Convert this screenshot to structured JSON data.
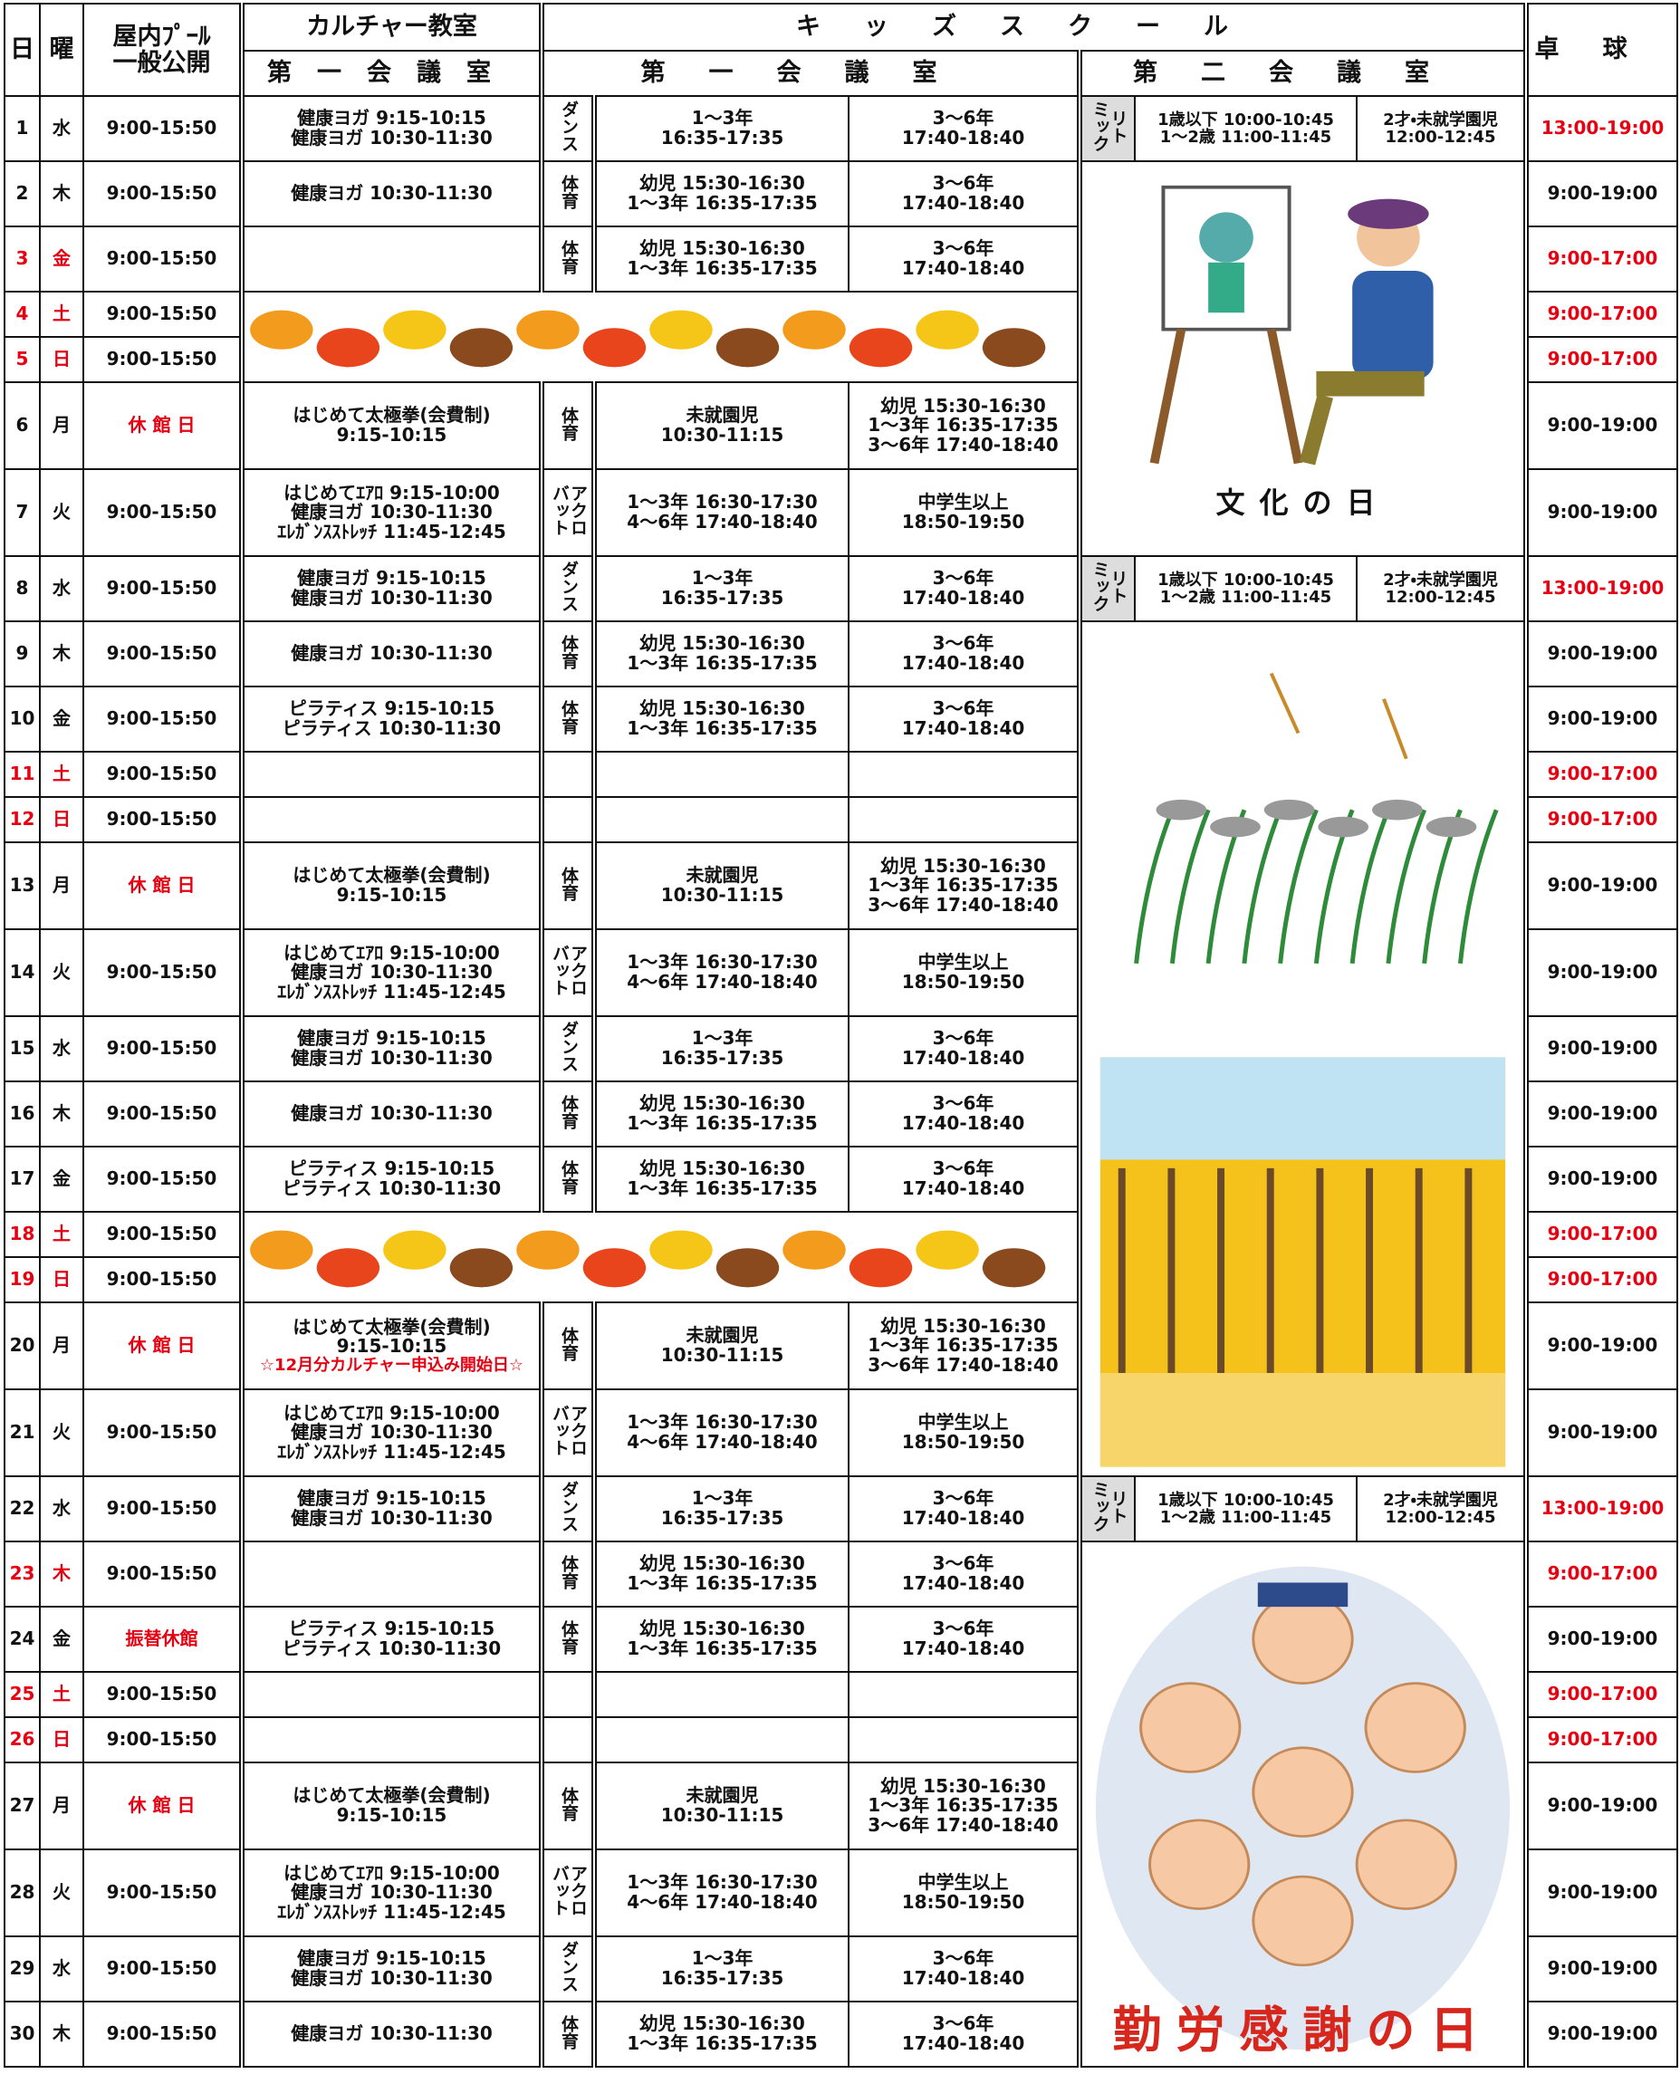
{
  "header": {
    "day": "日",
    "weekday": "曜",
    "pool": [
      "屋内ﾌﾟｰﾙ",
      "一般公開"
    ],
    "culture": "カルチャー教室",
    "culture_room": "第一会議室",
    "kids": "キッズスクール",
    "kids_room1": "第一会議室",
    "kids_room2": "第二会議室",
    "tennis": "卓球"
  },
  "decorations": {
    "culture_day": "文化の日",
    "labor_day": "勤労感謝の日"
  },
  "rows": [
    {
      "day": 1,
      "weekday": "水",
      "pool": "9:00-15:50",
      "culture": [
        "健康ヨガ 9:15-10:15",
        "健康ヨガ 10:30-11:30"
      ],
      "kids_type": [
        "ダンス"
      ],
      "kids_1": [
        "1～3年",
        "16:35-17:35"
      ],
      "kids_2": [
        "3～6年",
        "17:40-18:40"
      ],
      "mix_type": [
        "リト",
        "ミック"
      ],
      "mix_1": [
        "1歳以下 10:00-10:45",
        "1～2歳 11:00-11:45"
      ],
      "mix_2": [
        "2才・未就学園児",
        "12:00-12:45"
      ],
      "tennis": "13:00-19:00",
      "tennis_color": "#e60012"
    },
    {
      "day": 2,
      "weekday": "木",
      "pool": "9:00-15:50",
      "culture": [
        "健康ヨガ 10:30-11:30"
      ],
      "kids_type": [
        "体育"
      ],
      "kids_1": [
        "幼児 15:30-16:30",
        "1～3年 16:35-17:35"
      ],
      "kids_2": [
        "3～6年",
        "17:40-18:40"
      ],
      "tennis": "9:00-19:00"
    },
    {
      "day": 3,
      "weekday": "金",
      "day_color": "#e60012",
      "pool": "9:00-15:50",
      "culture": [],
      "kids_type": [
        "体育"
      ],
      "kids_1": [
        "幼児 15:30-16:30",
        "1～3年 16:35-17:35"
      ],
      "kids_2": [
        "3～6年",
        "17:40-18:40"
      ],
      "tennis": "9:00-17:00",
      "tennis_color": "#e60012"
    },
    {
      "day": 4,
      "weekday": "土",
      "day_color": "#e60012",
      "pool": "9:00-15:50",
      "tennis": "9:00-17:00",
      "tennis_color": "#e60012"
    },
    {
      "day": 5,
      "weekday": "日",
      "day_color": "#e60012",
      "pool": "9:00-15:50",
      "tennis": "9:00-17:00",
      "tennis_color": "#e60012"
    },
    {
      "day": 6,
      "weekday": "月",
      "pool": "休 館 日",
      "pool_color": "#e60012",
      "culture": [
        "はじめて太極拳(会費制)",
        "9:15-10:15"
      ],
      "kids_type": [
        "体育"
      ],
      "kids_1": [
        "未就園児",
        "10:30-11:15"
      ],
      "kids_2": [
        "幼児 15:30-16:30",
        "1～3年 16:35-17:35",
        "3～6年 17:40-18:40"
      ],
      "tennis": "9:00-19:00"
    },
    {
      "day": 7,
      "weekday": "火",
      "pool": "9:00-15:50",
      "culture": [
        "はじめてｴｱﾛ 9:15-10:00",
        "健康ヨガ 10:30-11:30",
        "ｴﾚｶﾞﾝｽｽﾄﾚｯﾁ 11:45-12:45"
      ],
      "kids_type": [
        "アクロ",
        "バット"
      ],
      "kids_1": [
        "1～3年 16:30-17:30",
        "4～6年 17:40-18:40"
      ],
      "kids_2": [
        "中学生以上",
        "18:50-19:50"
      ],
      "tennis": "9:00-19:00"
    },
    {
      "day": 8,
      "weekday": "水",
      "pool": "9:00-15:50",
      "culture": [
        "健康ヨガ 9:15-10:15",
        "健康ヨガ 10:30-11:30"
      ],
      "kids_type": [
        "ダンス"
      ],
      "kids_1": [
        "1～3年",
        "16:35-17:35"
      ],
      "kids_2": [
        "3～6年",
        "17:40-18:40"
      ],
      "mix_type": [
        "リト",
        "ミック"
      ],
      "mix_1": [
        "1歳以下 10:00-10:45",
        "1～2歳 11:00-11:45"
      ],
      "mix_2": [
        "2才・未就学園児",
        "12:00-12:45"
      ],
      "tennis": "13:00-19:00",
      "tennis_color": "#e60012"
    },
    {
      "day": 9,
      "weekday": "木",
      "pool": "9:00-15:50",
      "culture": [
        "健康ヨガ 10:30-11:30"
      ],
      "kids_type": [
        "体育"
      ],
      "kids_1": [
        "幼児 15:30-16:30",
        "1～3年 16:35-17:35"
      ],
      "kids_2": [
        "3～6年",
        "17:40-18:40"
      ],
      "tennis": "9:00-19:00"
    },
    {
      "day": 10,
      "weekday": "金",
      "pool": "9:00-15:50",
      "culture": [
        "ピラティス 9:15-10:15",
        "ピラティス 10:30-11:30"
      ],
      "kids_type": [
        "体育"
      ],
      "kids_1": [
        "幼児 15:30-16:30",
        "1～3年 16:35-17:35"
      ],
      "kids_2": [
        "3～6年",
        "17:40-18:40"
      ],
      "tennis": "9:00-19:00"
    },
    {
      "day": 11,
      "weekday": "土",
      "day_color": "#e60012",
      "pool": "9:00-15:50",
      "culture": [],
      "kids_type": [],
      "kids_1": [],
      "kids_2": [],
      "tennis": "9:00-17:00",
      "tennis_color": "#e60012"
    },
    {
      "day": 12,
      "weekday": "日",
      "day_color": "#e60012",
      "pool": "9:00-15:50",
      "culture": [],
      "kids_type": [],
      "kids_1": [],
      "kids_2": [],
      "tennis": "9:00-17:00",
      "tennis_color": "#e60012"
    },
    {
      "day": 13,
      "weekday": "月",
      "pool": "休 館 日",
      "pool_color": "#e60012",
      "culture": [
        "はじめて太極拳(会費制)",
        "9:15-10:15"
      ],
      "kids_type": [
        "体育"
      ],
      "kids_1": [
        "未就園児",
        "10:30-11:15"
      ],
      "kids_2": [
        "幼児 15:30-16:30",
        "1～3年 16:35-17:35",
        "3～6年 17:40-18:40"
      ],
      "tennis": "9:00-19:00"
    },
    {
      "day": 14,
      "weekday": "火",
      "pool": "9:00-15:50",
      "culture": [
        "はじめてｴｱﾛ 9:15-10:00",
        "健康ヨガ 10:30-11:30",
        "ｴﾚｶﾞﾝｽｽﾄﾚｯﾁ 11:45-12:45"
      ],
      "kids_type": [
        "アクロ",
        "バット"
      ],
      "kids_1": [
        "1～3年 16:30-17:30",
        "4～6年 17:40-18:40"
      ],
      "kids_2": [
        "中学生以上",
        "18:50-19:50"
      ],
      "tennis": "9:00-19:00"
    },
    {
      "day": 15,
      "weekday": "水",
      "pool": "9:00-15:50",
      "culture": [
        "健康ヨガ 9:15-10:15",
        "健康ヨガ 10:30-11:30"
      ],
      "kids_type": [
        "ダンス"
      ],
      "kids_1": [
        "1～3年",
        "16:35-17:35"
      ],
      "kids_2": [
        "3～6年",
        "17:40-18:40"
      ],
      "tennis": "9:00-19:00"
    },
    {
      "day": 16,
      "weekday": "木",
      "pool": "9:00-15:50",
      "culture": [
        "健康ヨガ 10:30-11:30"
      ],
      "kids_type": [
        "体育"
      ],
      "kids_1": [
        "幼児 15:30-16:30",
        "1～3年 16:35-17:35"
      ],
      "kids_2": [
        "3～6年",
        "17:40-18:40"
      ],
      "tennis": "9:00-19:00"
    },
    {
      "day": 17,
      "weekday": "金",
      "pool": "9:00-15:50",
      "culture": [
        "ピラティス 9:15-10:15",
        "ピラティス 10:30-11:30"
      ],
      "kids_type": [
        "体育"
      ],
      "kids_1": [
        "幼児 15:30-16:30",
        "1～3年 16:35-17:35"
      ],
      "kids_2": [
        "3～6年",
        "17:40-18:40"
      ],
      "tennis": "9:00-19:00"
    },
    {
      "day": 18,
      "weekday": "土",
      "day_color": "#e60012",
      "pool": "9:00-15:50",
      "tennis": "9:00-17:00",
      "tennis_color": "#e60012"
    },
    {
      "day": 19,
      "weekday": "日",
      "day_color": "#e60012",
      "pool": "9:00-15:50",
      "tennis": "9:00-17:00",
      "tennis_color": "#e60012"
    },
    {
      "day": 20,
      "weekday": "月",
      "pool": "休 館 日",
      "pool_color": "#e60012",
      "culture": [
        "はじめて太極拳(会費制)",
        "9:15-10:15"
      ],
      "culture_note": "☆12月分カルチャー申込み開始日☆",
      "culture_note_color": "#e60012",
      "kids_type": [
        "体育"
      ],
      "kids_1": [
        "未就園児",
        "10:30-11:15"
      ],
      "kids_2": [
        "幼児 15:30-16:30",
        "1～3年 16:35-17:35",
        "3～6年 17:40-18:40"
      ],
      "tennis": "9:00-19:00"
    },
    {
      "day": 21,
      "weekday": "火",
      "pool": "9:00-15:50",
      "culture": [
        "はじめてｴｱﾛ 9:15-10:00",
        "健康ヨガ 10:30-11:30",
        "ｴﾚｶﾞﾝｽｽﾄﾚｯﾁ 11:45-12:45"
      ],
      "kids_type": [
        "アクロ",
        "バット"
      ],
      "kids_1": [
        "1～3年 16:30-17:30",
        "4～6年 17:40-18:40"
      ],
      "kids_2": [
        "中学生以上",
        "18:50-19:50"
      ],
      "tennis": "9:00-19:00"
    },
    {
      "day": 22,
      "weekday": "水",
      "pool": "9:00-15:50",
      "culture": [
        "健康ヨガ 9:15-10:15",
        "健康ヨガ 10:30-11:30"
      ],
      "kids_type": [
        "ダンス"
      ],
      "kids_1": [
        "1～3年",
        "16:35-17:35"
      ],
      "kids_2": [
        "3～6年",
        "17:40-18:40"
      ],
      "mix_type": [
        "リト",
        "ミック"
      ],
      "mix_1": [
        "1歳以下 10:00-10:45",
        "1～2歳 11:00-11:45"
      ],
      "mix_2": [
        "2才・未就学園児",
        "12:00-12:45"
      ],
      "tennis": "13:00-19:00",
      "tennis_color": "#e60012"
    },
    {
      "day": 23,
      "weekday": "木",
      "day_color": "#e60012",
      "pool": "9:00-15:50",
      "culture": [],
      "kids_type": [
        "体育"
      ],
      "kids_1": [
        "幼児 15:30-16:30",
        "1～3年 16:35-17:35"
      ],
      "kids_2": [
        "3～6年",
        "17:40-18:40"
      ],
      "tennis": "9:00-17:00",
      "tennis_color": "#e60012"
    },
    {
      "day": 24,
      "weekday": "金",
      "pool": "振替休館",
      "pool_color": "#e60012",
      "culture": [
        "ピラティス 9:15-10:15",
        "ピラティス 10:30-11:30"
      ],
      "kids_type": [
        "体育"
      ],
      "kids_1": [
        "幼児 15:30-16:30",
        "1～3年 16:35-17:35"
      ],
      "kids_2": [
        "3～6年",
        "17:40-18:40"
      ],
      "tennis": "9:00-19:00"
    },
    {
      "day": 25,
      "weekday": "土",
      "day_color": "#e60012",
      "pool": "9:00-15:50",
      "culture": [],
      "kids_type": [],
      "kids_1": [],
      "kids_2": [],
      "tennis": "9:00-17:00",
      "tennis_color": "#e60012"
    },
    {
      "day": 26,
      "weekday": "日",
      "day_color": "#e60012",
      "pool": "9:00-15:50",
      "culture": [],
      "kids_type": [],
      "kids_1": [],
      "kids_2": [],
      "tennis": "9:00-17:00",
      "tennis_color": "#e60012"
    },
    {
      "day": 27,
      "weekday": "月",
      "pool": "休 館 日",
      "pool_color": "#e60012",
      "culture": [
        "はじめて太極拳(会費制)",
        "9:15-10:15"
      ],
      "kids_type": [
        "体育"
      ],
      "kids_1": [
        "未就園児",
        "10:30-11:15"
      ],
      "kids_2": [
        "幼児 15:30-16:30",
        "1～3年 16:35-17:35",
        "3～6年 17:40-18:40"
      ],
      "tennis": "9:00-19:00"
    },
    {
      "day": 28,
      "weekday": "火",
      "pool": "9:00-15:50",
      "culture": [
        "はじめてｴｱﾛ 9:15-10:00",
        "健康ヨガ 10:30-11:30",
        "ｴﾚｶﾞﾝｽｽﾄﾚｯﾁ 11:45-12:45"
      ],
      "kids_type": [
        "アクロ",
        "バット"
      ],
      "kids_1": [
        "1～3年 16:30-17:30",
        "4～6年 17:40-18:40"
      ],
      "kids_2": [
        "中学生以上",
        "18:50-19:50"
      ],
      "tennis": "9:00-19:00"
    },
    {
      "day": 29,
      "weekday": "水",
      "pool": "9:00-15:50",
      "culture": [
        "健康ヨガ 9:15-10:15",
        "健康ヨガ 10:30-11:30"
      ],
      "kids_type": [
        "ダンス"
      ],
      "kids_1": [
        "1～3年",
        "16:35-17:35"
      ],
      "kids_2": [
        "3～6年",
        "17:40-18:40"
      ],
      "tennis": "9:00-19:00"
    },
    {
      "day": 30,
      "weekday": "木",
      "pool": "9:00-15:50",
      "culture": [
        "健康ヨガ 10:30-11:30"
      ],
      "kids_type": [
        "体育"
      ],
      "kids_1": [
        "幼児 15:30-16:30",
        "1～3年 16:35-17:35"
      ],
      "kids_2": [
        "3～6年",
        "17:40-18:40"
      ],
      "tennis": "9:00-19:00"
    }
  ]
}
